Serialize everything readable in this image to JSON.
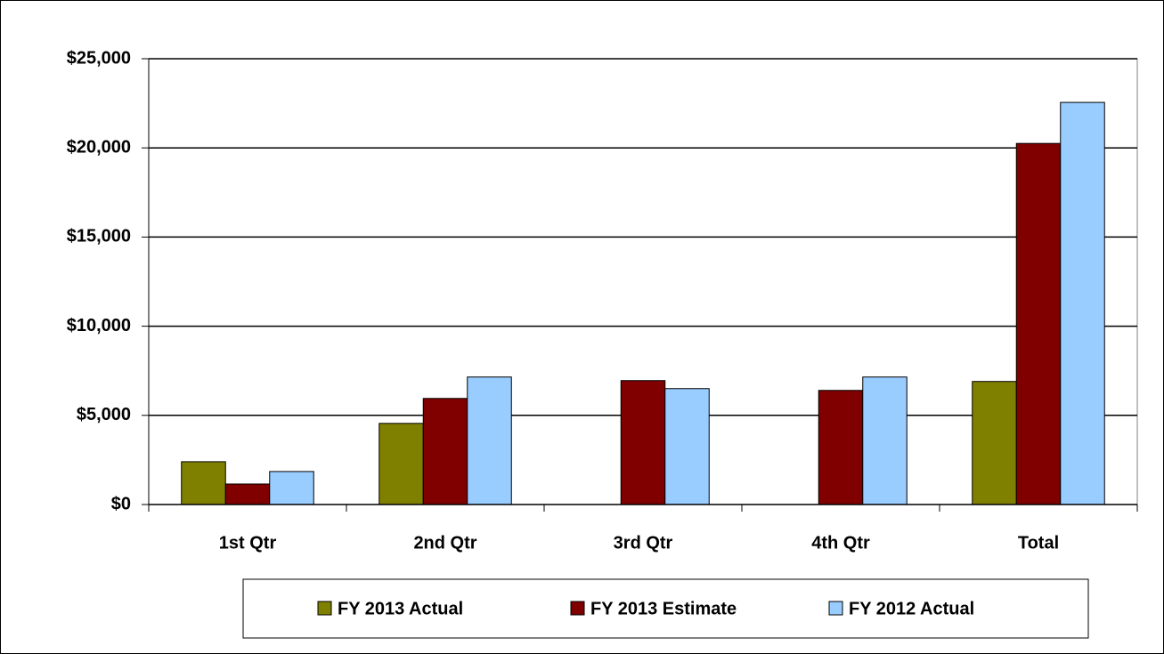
{
  "chart_data": {
    "type": "bar",
    "categories": [
      "1st Qtr",
      "2nd Qtr",
      "3rd Qtr",
      "4th Qtr",
      "Total"
    ],
    "series": [
      {
        "name": "FY 2013 Actual",
        "color": "#808000",
        "values": [
          2400,
          4550,
          null,
          null,
          6900
        ]
      },
      {
        "name": "FY 2013 Estimate",
        "color": "#800000",
        "values": [
          1150,
          5950,
          6950,
          6400,
          20250
        ]
      },
      {
        "name": "FY 2012 Actual",
        "color": "#99ccff",
        "values": [
          1850,
          7150,
          6500,
          7150,
          22550
        ]
      }
    ],
    "ylim": [
      0,
      25000
    ],
    "yticks": [
      {
        "value": 0,
        "label": "$0"
      },
      {
        "value": 5000,
        "label": "$5,000"
      },
      {
        "value": 10000,
        "label": "$10,000"
      },
      {
        "value": 15000,
        "label": "$15,000"
      },
      {
        "value": 20000,
        "label": "$20,000"
      },
      {
        "value": 25000,
        "label": "$25,000"
      }
    ],
    "grid": true,
    "legend": "bottom"
  }
}
